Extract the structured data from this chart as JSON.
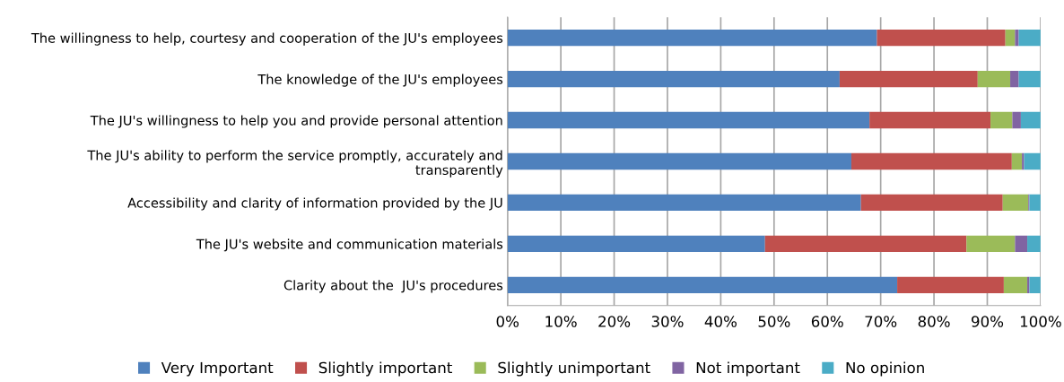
{
  "chart_data": {
    "type": "bar",
    "orientation": "horizontal",
    "stacked": true,
    "categories": [
      "The willingness to help, courtesy and cooperation of the JU's employees",
      "The knowledge of the JU's employees",
      "The JU's willingness to help you and provide personal attention",
      "The JU's ability to perform the service promptly, accurately and\ntransparently",
      "Accessibility and clarity of information provided by the JU",
      "The JU's website and communication materials",
      "Clarity about the  JU's procedures"
    ],
    "series": [
      {
        "name": "Very Important",
        "color": "#4f81bd",
        "values": [
          69.3,
          62.3,
          67.9,
          64.5,
          66.3,
          48.3,
          73.1
        ]
      },
      {
        "name": "Slightly important",
        "color": "#c0504d",
        "values": [
          24.1,
          25.9,
          22.7,
          30.1,
          26.6,
          37.8,
          20.0
        ]
      },
      {
        "name": "Slightly unimportant",
        "color": "#9bbb59",
        "values": [
          1.8,
          6.1,
          4.1,
          1.9,
          4.8,
          9.1,
          4.4
        ]
      },
      {
        "name": "Not important",
        "color": "#8064a2",
        "values": [
          0.7,
          1.6,
          1.6,
          0.4,
          0.2,
          2.3,
          0.4
        ]
      },
      {
        "name": "No opinion",
        "color": "#4bacc6",
        "values": [
          4.1,
          4.1,
          3.7,
          3.1,
          2.1,
          2.5,
          2.1
        ]
      }
    ],
    "xlim": [
      0,
      100
    ],
    "xticks": [
      {
        "value": 0,
        "label": "0%"
      },
      {
        "value": 10,
        "label": "10%"
      },
      {
        "value": 20,
        "label": "20%"
      },
      {
        "value": 30,
        "label": "30%"
      },
      {
        "value": 40,
        "label": "40%"
      },
      {
        "value": 50,
        "label": "50%"
      },
      {
        "value": 60,
        "label": "60%"
      },
      {
        "value": 70,
        "label": "70%"
      },
      {
        "value": 80,
        "label": "80%"
      },
      {
        "value": 90,
        "label": "90%"
      },
      {
        "value": 100,
        "label": "100%"
      }
    ],
    "grid": "x",
    "legend": "bottom"
  }
}
